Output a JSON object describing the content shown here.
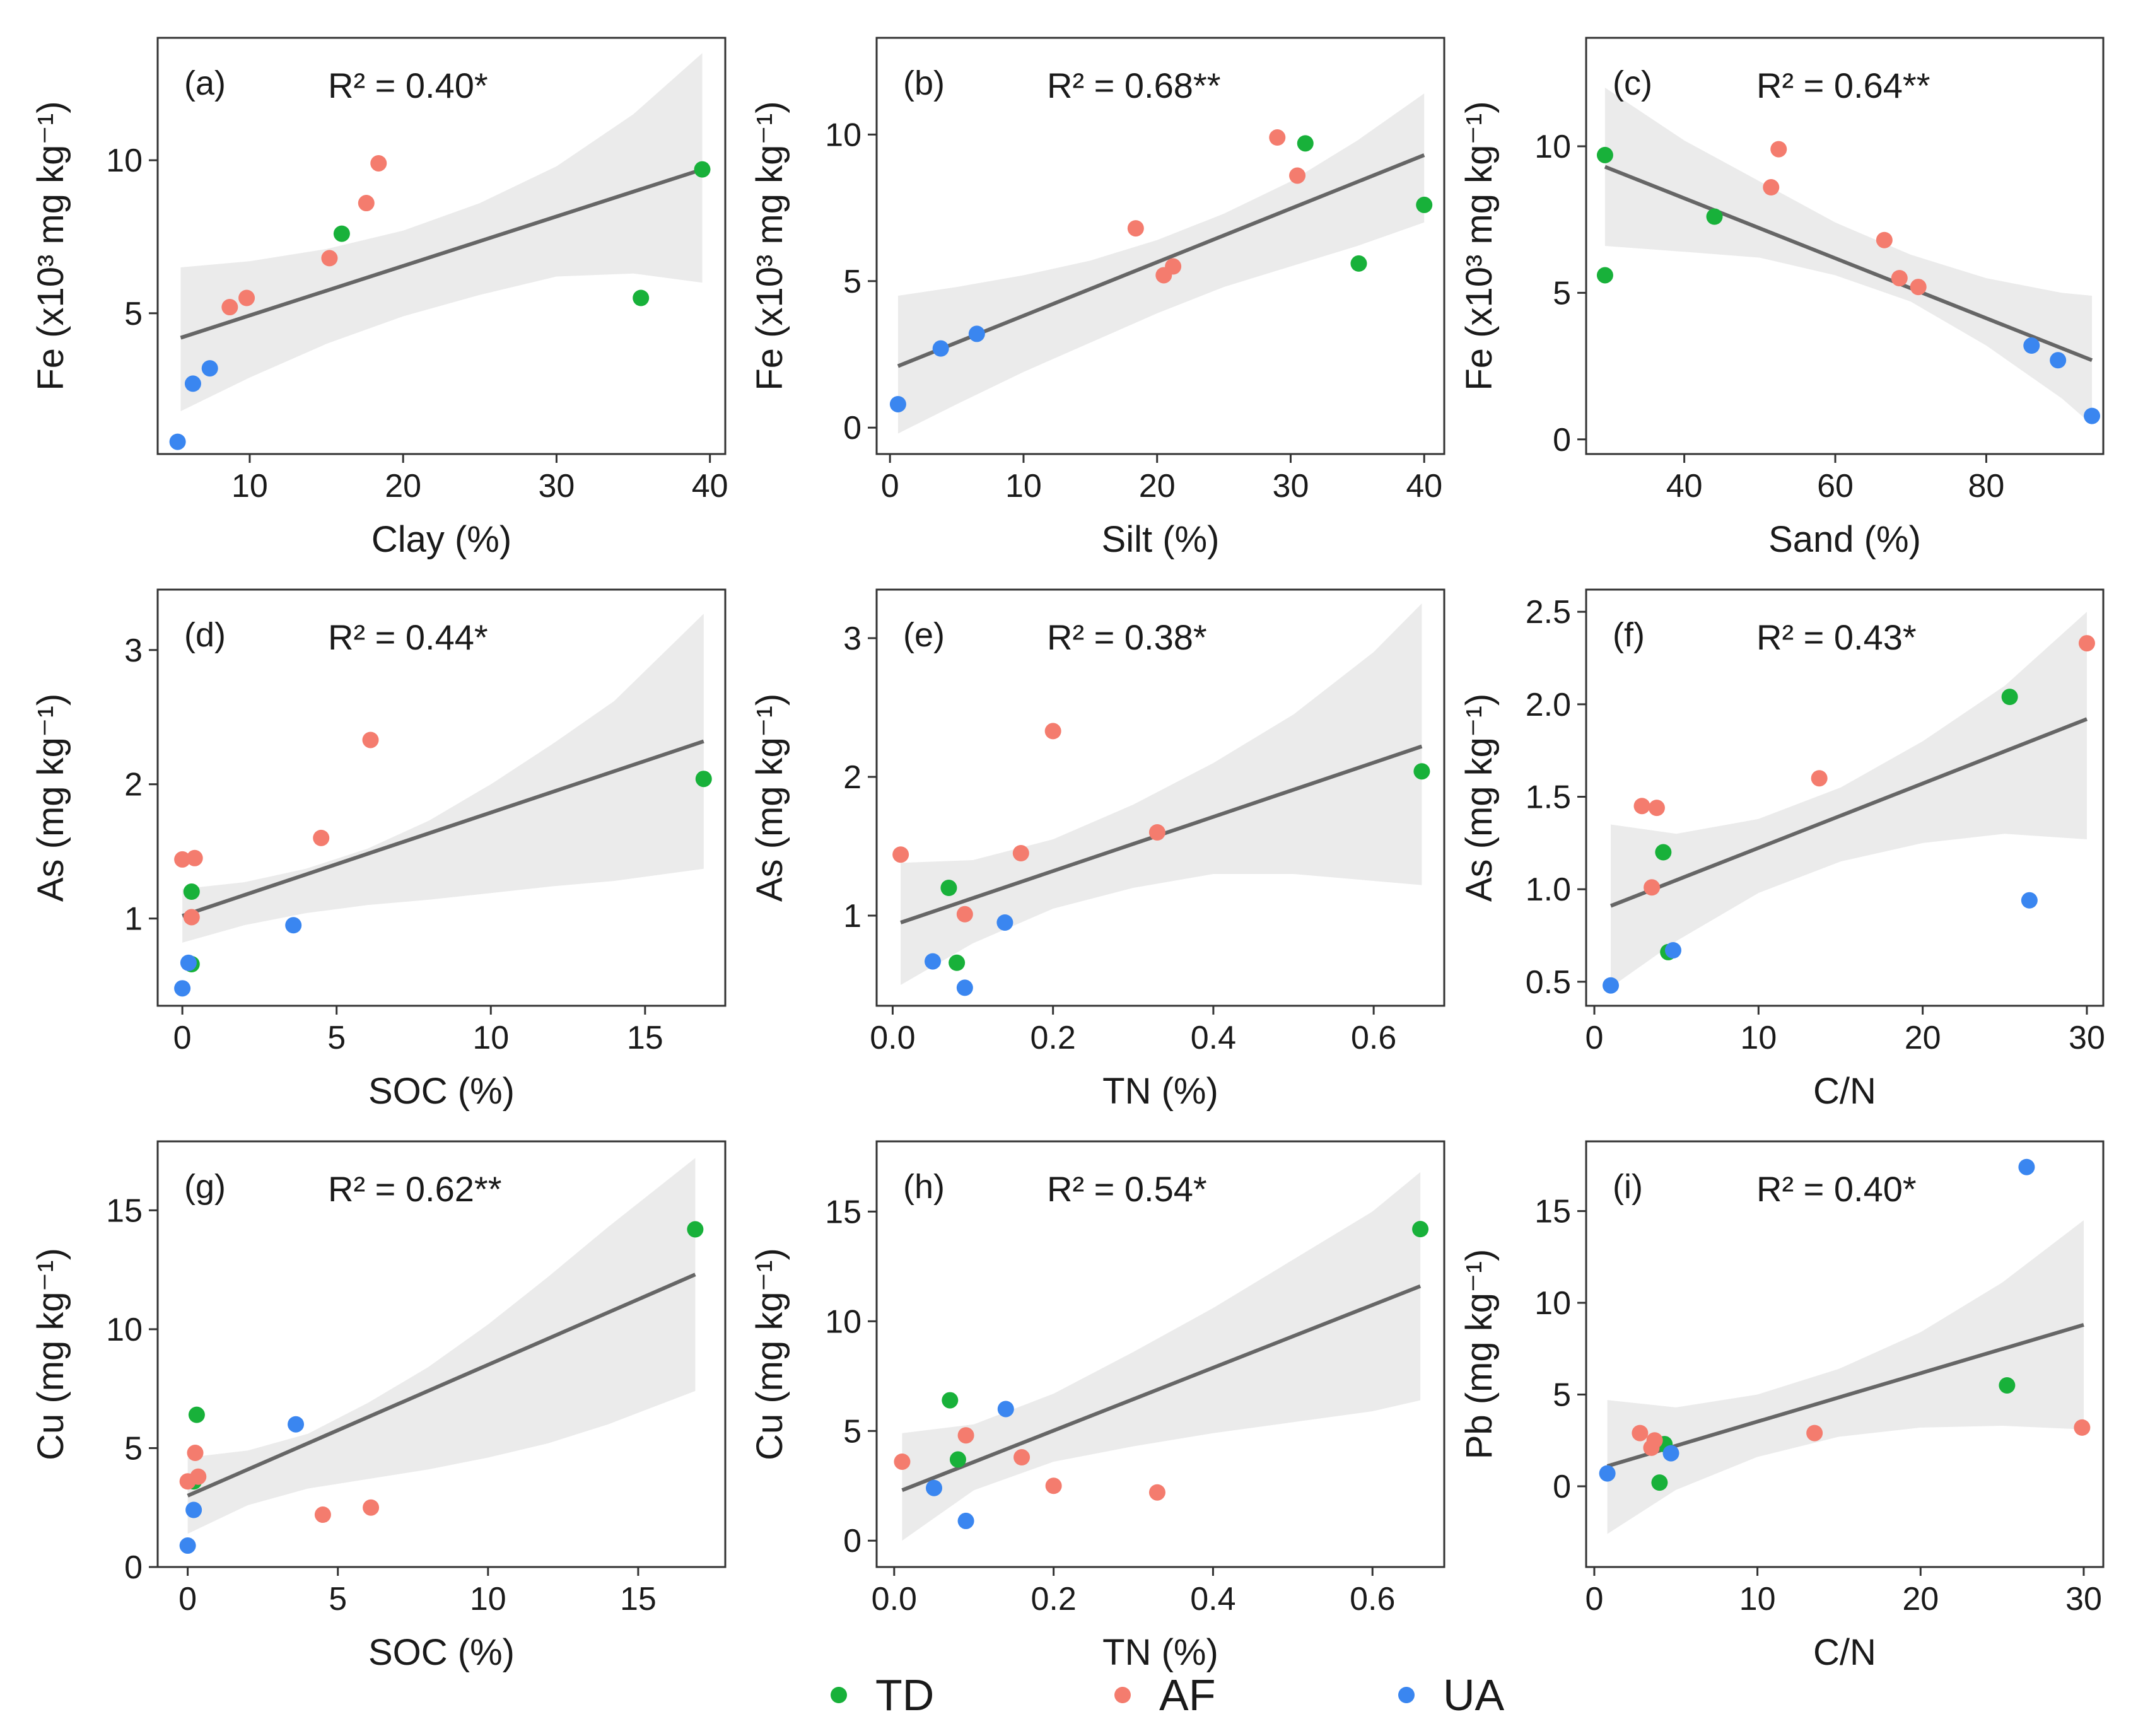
{
  "colors": {
    "TD": "#18b13a",
    "AF": "#f47c6e",
    "UA": "#3a86f0",
    "fit_line": "#666666",
    "band": "#ebebeb"
  },
  "legend": [
    {
      "key": "TD",
      "label": "TD"
    },
    {
      "key": "AF",
      "label": "AF"
    },
    {
      "key": "UA",
      "label": "UA"
    }
  ],
  "chart_data": [
    {
      "id": "a",
      "type": "scatter",
      "panel_label": "(a)",
      "r2_label": "R² = 0.40*",
      "xlabel": "Clay (%)",
      "ylabel": "Fe (x10³ mg kg⁻¹)",
      "xlim": [
        4,
        41
      ],
      "ylim": [
        0.4,
        14.0
      ],
      "xticks": [
        10,
        20,
        30,
        40
      ],
      "yticks": [
        5,
        10
      ],
      "fit": {
        "x0": 5.5,
        "y0": 4.2,
        "x1": 39.5,
        "y1": 9.7
      },
      "band": {
        "x": [
          5.5,
          10,
          15,
          20,
          25,
          30,
          35,
          39.5
        ],
        "upper": [
          6.5,
          6.7,
          7.1,
          7.7,
          8.6,
          9.8,
          11.5,
          13.5
        ],
        "lower": [
          1.8,
          2.9,
          4.0,
          4.9,
          5.6,
          6.2,
          6.3,
          6.0
        ]
      },
      "series": [
        {
          "name": "TD",
          "x": [
            16.0,
            35.5,
            39.5
          ],
          "y": [
            7.6,
            5.5,
            9.7
          ]
        },
        {
          "name": "AF",
          "x": [
            8.7,
            9.8,
            15.2,
            17.6,
            18.4
          ],
          "y": [
            5.2,
            5.5,
            6.8,
            8.6,
            9.9
          ]
        },
        {
          "name": "UA",
          "x": [
            5.3,
            6.3,
            7.4
          ],
          "y": [
            0.8,
            2.7,
            3.2
          ]
        }
      ]
    },
    {
      "id": "b",
      "type": "scatter",
      "panel_label": "(b)",
      "r2_label": "R² = 0.68**",
      "xlabel": "Silt (%)",
      "ylabel": "Fe (x10³ mg kg⁻¹)",
      "xlim": [
        -1,
        41.5
      ],
      "ylim": [
        -0.9,
        13.3
      ],
      "xticks": [
        0,
        10,
        20,
        30,
        40
      ],
      "yticks": [
        0,
        5,
        10
      ],
      "fit": {
        "x0": 0.6,
        "y0": 2.1,
        "x1": 40,
        "y1": 9.3
      },
      "band": {
        "x": [
          0.6,
          5,
          10,
          15,
          20,
          25,
          30,
          35,
          40
        ],
        "upper": [
          4.5,
          4.8,
          5.2,
          5.7,
          6.4,
          7.3,
          8.4,
          9.8,
          11.4
        ],
        "lower": [
          -0.2,
          0.8,
          1.9,
          2.9,
          3.9,
          4.8,
          5.5,
          6.2,
          7.0
        ]
      },
      "series": [
        {
          "name": "TD",
          "x": [
            31.1,
            35.1,
            40.0
          ],
          "y": [
            9.7,
            5.6,
            7.6
          ]
        },
        {
          "name": "AF",
          "x": [
            18.4,
            20.5,
            21.2,
            29.0,
            30.5
          ],
          "y": [
            6.8,
            5.2,
            5.5,
            9.9,
            8.6
          ]
        },
        {
          "name": "UA",
          "x": [
            0.6,
            3.8,
            6.5
          ],
          "y": [
            0.8,
            2.7,
            3.2
          ]
        }
      ]
    },
    {
      "id": "c",
      "type": "scatter",
      "panel_label": "(c)",
      "r2_label": "R² = 0.64**",
      "xlabel": "Sand (%)",
      "ylabel": "Fe (x10³ mg kg⁻¹)",
      "xlim": [
        27,
        95.5
      ],
      "ylim": [
        -0.5,
        13.7
      ],
      "xticks": [
        40,
        60,
        80
      ],
      "yticks": [
        0,
        5,
        10
      ],
      "fit": {
        "x0": 29.5,
        "y0": 9.3,
        "x1": 94,
        "y1": 2.7
      },
      "band": {
        "x": [
          29.5,
          40,
          50,
          60,
          70,
          80,
          90,
          94
        ],
        "upper": [
          12.0,
          10.2,
          8.8,
          7.4,
          6.3,
          5.5,
          5.0,
          4.9
        ],
        "lower": [
          6.6,
          6.4,
          6.2,
          5.6,
          4.7,
          3.2,
          1.4,
          0.5
        ]
      },
      "series": [
        {
          "name": "TD",
          "x": [
            29.5,
            29.5,
            44.0
          ],
          "y": [
            9.7,
            5.6,
            7.6
          ]
        },
        {
          "name": "AF",
          "x": [
            51.5,
            52.5,
            66.5,
            68.5,
            71.0
          ],
          "y": [
            8.6,
            9.9,
            6.8,
            5.5,
            5.2
          ]
        },
        {
          "name": "UA",
          "x": [
            86.0,
            89.5,
            94.0
          ],
          "y": [
            3.2,
            2.7,
            0.8
          ]
        }
      ]
    },
    {
      "id": "d",
      "type": "scatter",
      "panel_label": "(d)",
      "r2_label": "R² = 0.44*",
      "xlabel": "SOC (%)",
      "ylabel": "As (mg kg⁻¹)",
      "xlim": [
        -0.8,
        17.6
      ],
      "ylim": [
        0.35,
        3.45
      ],
      "xticks": [
        0,
        5,
        10,
        15
      ],
      "yticks": [
        1,
        2,
        3
      ],
      "fit": {
        "x0": 0,
        "y0": 1.02,
        "x1": 16.9,
        "y1": 2.32
      },
      "band": {
        "x": [
          0,
          2,
          4,
          6,
          8,
          10,
          12,
          14,
          16.9
        ],
        "upper": [
          1.22,
          1.27,
          1.37,
          1.52,
          1.73,
          2.0,
          2.3,
          2.62,
          3.27
        ],
        "lower": [
          0.82,
          0.95,
          1.04,
          1.1,
          1.14,
          1.19,
          1.24,
          1.28,
          1.37
        ]
      },
      "series": [
        {
          "name": "TD",
          "x": [
            0.3,
            0.3,
            16.9
          ],
          "y": [
            1.2,
            0.66,
            2.04
          ]
        },
        {
          "name": "AF",
          "x": [
            0.0,
            0.4,
            0.3,
            4.5,
            6.1
          ],
          "y": [
            1.44,
            1.45,
            1.01,
            1.6,
            2.33
          ]
        },
        {
          "name": "UA",
          "x": [
            0.0,
            0.2,
            3.6
          ],
          "y": [
            0.48,
            0.67,
            0.95
          ]
        }
      ]
    },
    {
      "id": "e",
      "type": "scatter",
      "panel_label": "(e)",
      "r2_label": "R² = 0.38*",
      "xlabel": "TN (%)",
      "ylabel": "As (mg kg⁻¹)",
      "xlim": [
        -0.02,
        0.688
      ],
      "ylim": [
        0.35,
        3.35
      ],
      "xticks": [
        0.0,
        0.2,
        0.4,
        0.6
      ],
      "yticks": [
        1,
        2,
        3
      ],
      "fit": {
        "x0": 0.01,
        "y0": 0.95,
        "x1": 0.66,
        "y1": 2.22
      },
      "band": {
        "x": [
          0.01,
          0.1,
          0.2,
          0.3,
          0.4,
          0.5,
          0.6,
          0.66
        ],
        "upper": [
          1.38,
          1.4,
          1.55,
          1.8,
          2.1,
          2.45,
          2.9,
          3.25
        ],
        "lower": [
          0.5,
          0.8,
          1.05,
          1.2,
          1.3,
          1.3,
          1.25,
          1.22
        ]
      },
      "series": [
        {
          "name": "TD",
          "x": [
            0.07,
            0.08,
            0.66
          ],
          "y": [
            1.2,
            0.66,
            2.04
          ]
        },
        {
          "name": "AF",
          "x": [
            0.01,
            0.09,
            0.16,
            0.2,
            0.33
          ],
          "y": [
            1.44,
            1.01,
            1.45,
            2.33,
            1.6
          ]
        },
        {
          "name": "UA",
          "x": [
            0.05,
            0.09,
            0.14
          ],
          "y": [
            0.67,
            0.48,
            0.95
          ]
        }
      ]
    },
    {
      "id": "f",
      "type": "scatter",
      "panel_label": "(f)",
      "r2_label": "R² = 0.43*",
      "xlabel": "C/N",
      "ylabel": "As (mg kg⁻¹)",
      "xlim": [
        -0.5,
        31
      ],
      "ylim": [
        0.37,
        2.62
      ],
      "xticks": [
        0,
        10,
        20,
        30
      ],
      "yticks": [
        0.5,
        1.0,
        1.5,
        2.0,
        2.5
      ],
      "yformat": 1,
      "fit": {
        "x0": 1.0,
        "y0": 0.91,
        "x1": 30,
        "y1": 1.92
      },
      "band": {
        "x": [
          1,
          5,
          10,
          15,
          20,
          25,
          30
        ],
        "upper": [
          1.35,
          1.3,
          1.38,
          1.55,
          1.8,
          2.1,
          2.5
        ],
        "lower": [
          0.47,
          0.72,
          0.98,
          1.15,
          1.25,
          1.3,
          1.27
        ]
      },
      "series": [
        {
          "name": "TD",
          "x": [
            4.2,
            4.5,
            25.3
          ],
          "y": [
            1.2,
            0.66,
            2.04
          ]
        },
        {
          "name": "AF",
          "x": [
            2.9,
            3.5,
            3.8,
            13.7,
            30.0
          ],
          "y": [
            1.45,
            1.01,
            1.44,
            1.6,
            2.33
          ]
        },
        {
          "name": "UA",
          "x": [
            1.0,
            4.8,
            26.5
          ],
          "y": [
            0.48,
            0.67,
            0.94
          ]
        }
      ]
    },
    {
      "id": "g",
      "type": "scatter",
      "panel_label": "(g)",
      "r2_label": "R² = 0.62**",
      "xlabel": "SOC (%)",
      "ylabel": "Cu (mg kg⁻¹)",
      "xlim": [
        -1.0,
        17.9
      ],
      "ylim": [
        0.0,
        17.9
      ],
      "xticks": [
        0,
        5,
        10,
        15
      ],
      "yticks": [
        0,
        5,
        10,
        15
      ],
      "fit": {
        "x0": 0,
        "y0": 3.0,
        "x1": 16.9,
        "y1": 12.3
      },
      "band": {
        "x": [
          0,
          2,
          4,
          6,
          8,
          10,
          12,
          14,
          16.9
        ],
        "upper": [
          4.6,
          4.9,
          5.6,
          6.9,
          8.4,
          10.2,
          12.2,
          14.3,
          17.2
        ],
        "lower": [
          1.4,
          2.6,
          3.3,
          3.7,
          4.1,
          4.6,
          5.2,
          6.0,
          7.4
        ]
      },
      "series": [
        {
          "name": "TD",
          "x": [
            0.2,
            0.3,
            16.9
          ],
          "y": [
            3.6,
            6.4,
            14.2
          ]
        },
        {
          "name": "AF",
          "x": [
            0.0,
            0.25,
            0.35,
            4.5,
            6.1
          ],
          "y": [
            3.6,
            4.8,
            3.8,
            2.2,
            2.5
          ]
        },
        {
          "name": "UA",
          "x": [
            0.0,
            0.2,
            3.6
          ],
          "y": [
            0.9,
            2.4,
            6.0
          ]
        }
      ]
    },
    {
      "id": "h",
      "type": "scatter",
      "panel_label": "(h)",
      "r2_label": "R² = 0.54*",
      "xlabel": "TN (%)",
      "ylabel": "Cu (mg kg⁻¹)",
      "xlim": [
        -0.022,
        0.69
      ],
      "ylim": [
        -1.2,
        18.2
      ],
      "xticks": [
        0.0,
        0.2,
        0.4,
        0.6
      ],
      "yticks": [
        0,
        5,
        10,
        15
      ],
      "fit": {
        "x0": 0.01,
        "y0": 2.3,
        "x1": 0.66,
        "y1": 11.6
      },
      "band": {
        "x": [
          0.01,
          0.1,
          0.2,
          0.3,
          0.4,
          0.5,
          0.6,
          0.66
        ],
        "upper": [
          4.9,
          5.3,
          6.7,
          8.6,
          10.6,
          12.8,
          15.0,
          16.8
        ],
        "lower": [
          0.0,
          2.3,
          3.6,
          4.3,
          4.9,
          5.4,
          5.9,
          6.4
        ]
      },
      "series": [
        {
          "name": "TD",
          "x": [
            0.07,
            0.08,
            0.66
          ],
          "y": [
            6.4,
            3.7,
            14.2
          ]
        },
        {
          "name": "AF",
          "x": [
            0.01,
            0.09,
            0.16,
            0.2,
            0.33
          ],
          "y": [
            3.6,
            4.8,
            3.8,
            2.5,
            2.2
          ]
        },
        {
          "name": "UA",
          "x": [
            0.05,
            0.09,
            0.14
          ],
          "y": [
            2.4,
            0.9,
            6.0
          ]
        }
      ]
    },
    {
      "id": "i",
      "type": "scatter",
      "panel_label": "(i)",
      "r2_label": "R² = 0.40*",
      "xlabel": "C/N",
      "ylabel": "Pb (mg kg⁻¹)",
      "xlim": [
        -0.5,
        31.2
      ],
      "ylim": [
        -4.4,
        18.8
      ],
      "xticks": [
        0,
        10,
        20,
        30
      ],
      "yticks": [
        0,
        5,
        10,
        15
      ],
      "fit": {
        "x0": 0.8,
        "y0": 1.1,
        "x1": 30,
        "y1": 8.8
      },
      "band": {
        "x": [
          0.8,
          5,
          10,
          15,
          20,
          25,
          30
        ],
        "upper": [
          4.7,
          4.3,
          5.0,
          6.4,
          8.4,
          11.1,
          14.5
        ],
        "lower": [
          -2.6,
          -0.2,
          1.6,
          2.7,
          3.2,
          3.3,
          3.1
        ]
      },
      "series": [
        {
          "name": "TD",
          "x": [
            4.0,
            4.3,
            25.3
          ],
          "y": [
            0.2,
            2.3,
            5.5
          ]
        },
        {
          "name": "AF",
          "x": [
            2.8,
            3.5,
            3.7,
            13.5,
            29.9
          ],
          "y": [
            2.9,
            2.1,
            2.5,
            2.9,
            3.2
          ]
        },
        {
          "name": "UA",
          "x": [
            0.8,
            4.7,
            26.5
          ],
          "y": [
            0.7,
            1.8,
            17.4
          ]
        }
      ]
    }
  ]
}
